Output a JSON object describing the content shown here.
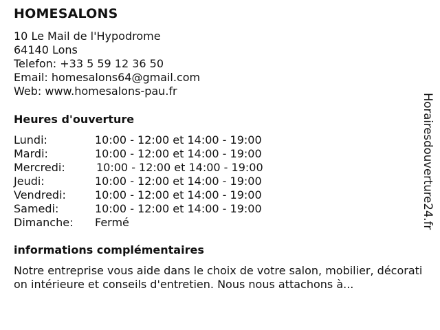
{
  "business": {
    "name": "HOMESALONS",
    "address_line1": "10 Le Mail de l'Hypodrome",
    "address_line2": "64140 Lons",
    "phone": "Telefon: +33 5 59 12 36 50",
    "email": "Email: homesalons64@gmail.com",
    "web": "Web: www.homesalons-pau.fr"
  },
  "hours": {
    "heading": "Heures d'ouverture",
    "rows": [
      {
        "day": "Lundi:",
        "time": "10:00 - 12:00 et 14:00 - 19:00"
      },
      {
        "day": "Mardi:",
        "time": "10:00 - 12:00 et 14:00 - 19:00"
      },
      {
        "day": "Mercredi:",
        "time": "10:00 - 12:00 et 14:00 - 19:00"
      },
      {
        "day": "Jeudi:",
        "time": "10:00 - 12:00 et 14:00 - 19:00"
      },
      {
        "day": "Vendredi:",
        "time": "10:00 - 12:00 et 14:00 - 19:00"
      },
      {
        "day": "Samedi:",
        "time": "10:00 - 12:00 et 14:00 - 19:00"
      },
      {
        "day": "Dimanche:",
        "time": "Fermé"
      }
    ]
  },
  "info": {
    "heading": "informations complémentaires",
    "text": "Notre entreprise vous aide dans le choix de votre salon, mobilier, décoration intérieure et conseils d'entretien. Nous nous attachons à..."
  },
  "watermark": "Horairesdouverture24.fr"
}
